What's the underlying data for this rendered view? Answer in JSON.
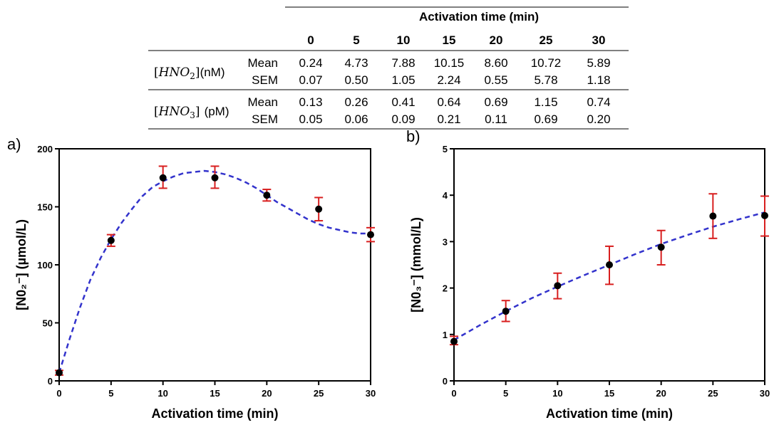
{
  "table": {
    "header_title": "Activation time (min)",
    "columns": [
      "0",
      "5",
      "10",
      "15",
      "20",
      "25",
      "30"
    ],
    "groups": [
      {
        "label": "[HNO2]",
        "label_main": "HNO",
        "label_sub": "2",
        "unit": "(nM)",
        "rows": [
          {
            "stat": "Mean",
            "values": [
              "0.24",
              "4.73",
              "7.88",
              "10.15",
              "8.60",
              "10.72",
              "5.89"
            ]
          },
          {
            "stat": "SEM",
            "values": [
              "0.07",
              "0.50",
              "1.05",
              "2.24",
              "0.55",
              "5.78",
              "1.18"
            ]
          }
        ]
      },
      {
        "label": "[HNO3]",
        "label_main": "HNO",
        "label_sub": "3",
        "unit": "(pM)",
        "rows": [
          {
            "stat": "Mean",
            "values": [
              "0.13",
              "0.26",
              "0.41",
              "0.64",
              "0.69",
              "1.15",
              "0.74"
            ]
          },
          {
            "stat": "SEM",
            "values": [
              "0.05",
              "0.06",
              "0.09",
              "0.21",
              "0.11",
              "0.69",
              "0.20"
            ]
          }
        ]
      }
    ]
  },
  "chart_data": [
    {
      "type": "scatter",
      "panel_label": "a)",
      "xlabel": "Activation time (min)",
      "ylabel": "[N0₂⁻] (µmol/L)",
      "xlim": [
        0,
        30
      ],
      "ylim": [
        0,
        200
      ],
      "xticks": [
        0,
        5,
        10,
        15,
        20,
        25,
        30
      ],
      "yticks": [
        0,
        50,
        100,
        150,
        200
      ],
      "x": [
        0,
        5,
        10,
        15,
        20,
        25,
        30
      ],
      "y": [
        7,
        121,
        175,
        175,
        160,
        148,
        126
      ],
      "err_low": [
        5,
        116,
        166,
        166,
        155,
        138,
        120
      ],
      "err_high": [
        9,
        126,
        185,
        185,
        165,
        158,
        132
      ],
      "fit": {
        "x": [
          0,
          1,
          2,
          3,
          4,
          5,
          6,
          7,
          8,
          9,
          10,
          11,
          12,
          13,
          14,
          15,
          16,
          17,
          18,
          19,
          20,
          21,
          22,
          23,
          24,
          25,
          26,
          27,
          28,
          29,
          30
        ],
        "y": [
          7,
          36,
          63,
          87,
          106,
          122,
          136,
          148,
          159,
          167,
          172,
          176,
          179,
          180,
          181,
          180,
          178,
          175,
          171,
          166,
          160,
          154,
          149,
          144,
          139,
          135,
          132,
          130,
          128,
          127,
          127
        ]
      },
      "colors": {
        "points": "#000000",
        "errorbars": "#d81f1f",
        "fit": "#3333cc"
      }
    },
    {
      "type": "scatter",
      "panel_label": "b)",
      "xlabel": "Activation time (min)",
      "ylabel": "[N0₃⁻] (mmol/L)",
      "xlim": [
        0,
        30
      ],
      "ylim": [
        0,
        5
      ],
      "xticks": [
        0,
        5,
        10,
        15,
        20,
        25,
        30
      ],
      "yticks": [
        0,
        1,
        2,
        3,
        4,
        5
      ],
      "x": [
        0,
        5,
        10,
        15,
        20,
        25,
        30
      ],
      "y": [
        0.85,
        1.5,
        2.05,
        2.5,
        2.88,
        3.55,
        3.56
      ],
      "err_low": [
        0.78,
        1.28,
        1.77,
        2.08,
        2.5,
        3.07,
        3.12
      ],
      "err_high": [
        0.96,
        1.73,
        2.32,
        2.9,
        3.24,
        4.03,
        3.98
      ],
      "fit": {
        "x": [
          0,
          2.5,
          5,
          7.5,
          10,
          12.5,
          15,
          17.5,
          20,
          22.5,
          25,
          27.5,
          30
        ],
        "y": [
          0.88,
          1.2,
          1.5,
          1.78,
          2.03,
          2.27,
          2.5,
          2.73,
          2.95,
          3.14,
          3.32,
          3.48,
          3.63
        ]
      },
      "colors": {
        "points": "#000000",
        "errorbars": "#d81f1f",
        "fit": "#3333cc"
      }
    }
  ]
}
